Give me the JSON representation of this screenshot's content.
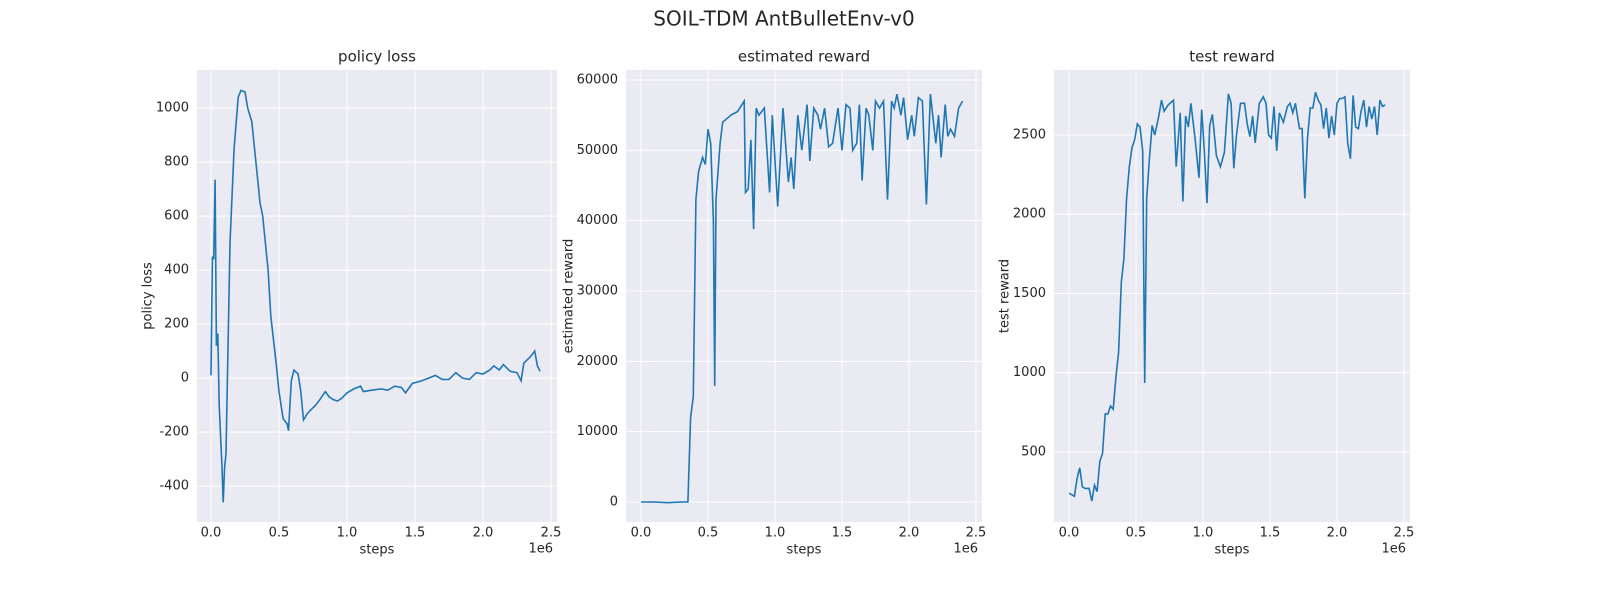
{
  "title": "SOIL-TDM AntBulletEnv-v0",
  "chart_data": [
    {
      "type": "line",
      "title": "policy loss",
      "xlabel": "steps",
      "ylabel": "policy loss",
      "x_offset_label": "1e6",
      "color": "#1f77b4",
      "grid": true,
      "xlim": [
        -103000,
        2544000
      ],
      "ylim": [
        -533,
        1141
      ],
      "xticks": [
        {
          "value": 0,
          "label": "0.0"
        },
        {
          "value": 500000,
          "label": "0.5"
        },
        {
          "value": 1000000,
          "label": "1.0"
        },
        {
          "value": 1500000,
          "label": "1.5"
        },
        {
          "value": 2000000,
          "label": "2.0"
        },
        {
          "value": 2500000,
          "label": "2.5"
        }
      ],
      "yticks": [
        -400,
        -200,
        0,
        200,
        400,
        600,
        800,
        1000
      ],
      "x": [
        0,
        10000,
        20000,
        30000,
        40000,
        50000,
        60000,
        80000,
        90000,
        100000,
        110000,
        140000,
        170000,
        200000,
        220000,
        250000,
        270000,
        300000,
        330000,
        360000,
        380000,
        420000,
        440000,
        480000,
        500000,
        530000,
        560000,
        570000,
        590000,
        610000,
        640000,
        660000,
        680000,
        710000,
        740000,
        770000,
        800000,
        840000,
        870000,
        900000,
        930000,
        960000,
        1000000,
        1050000,
        1100000,
        1120000,
        1180000,
        1250000,
        1300000,
        1350000,
        1400000,
        1430000,
        1480000,
        1550000,
        1600000,
        1650000,
        1700000,
        1750000,
        1800000,
        1850000,
        1900000,
        1950000,
        2000000,
        2050000,
        2080000,
        2120000,
        2150000,
        2200000,
        2250000,
        2280000,
        2300000,
        2350000,
        2380000,
        2400000,
        2420000
      ],
      "values": [
        10,
        450,
        440,
        735,
        120,
        165,
        -100,
        -320,
        -460,
        -330,
        -280,
        500,
        850,
        1040,
        1065,
        1060,
        1000,
        950,
        800,
        650,
        600,
        400,
        230,
        50,
        -50,
        -150,
        -170,
        -195,
        -10,
        30,
        15,
        -50,
        -155,
        -130,
        -115,
        -100,
        -80,
        -50,
        -70,
        -80,
        -85,
        -75,
        -55,
        -40,
        -30,
        -50,
        -45,
        -40,
        -45,
        -30,
        -35,
        -55,
        -20,
        -10,
        0,
        10,
        -5,
        -5,
        20,
        0,
        -5,
        20,
        15,
        30,
        45,
        30,
        50,
        25,
        20,
        -10,
        55,
        80,
        100,
        45,
        25
      ]
    },
    {
      "type": "line",
      "title": "estimated reward",
      "xlabel": "steps",
      "ylabel": "estimated reward",
      "x_offset_label": "1e6",
      "color": "#1f77b4",
      "grid": true,
      "xlim": [
        -112000,
        2545000
      ],
      "ylim": [
        -2844,
        61420
      ],
      "xticks": [
        {
          "value": 0,
          "label": "0.0"
        },
        {
          "value": 500000,
          "label": "0.5"
        },
        {
          "value": 1000000,
          "label": "1.0"
        },
        {
          "value": 1500000,
          "label": "1.5"
        },
        {
          "value": 2000000,
          "label": "2.0"
        },
        {
          "value": 2500000,
          "label": "2.5"
        }
      ],
      "yticks": [
        0,
        10000,
        20000,
        30000,
        40000,
        50000,
        60000
      ],
      "x": [
        0,
        100000,
        200000,
        300000,
        350000,
        370000,
        390000,
        410000,
        430000,
        460000,
        480000,
        500000,
        520000,
        540000,
        550000,
        560000,
        590000,
        610000,
        640000,
        670000,
        720000,
        770000,
        780000,
        800000,
        820000,
        840000,
        860000,
        880000,
        920000,
        960000,
        980000,
        1020000,
        1060000,
        1100000,
        1120000,
        1140000,
        1170000,
        1200000,
        1240000,
        1260000,
        1290000,
        1320000,
        1340000,
        1370000,
        1400000,
        1430000,
        1470000,
        1500000,
        1530000,
        1560000,
        1580000,
        1610000,
        1630000,
        1650000,
        1680000,
        1700000,
        1730000,
        1750000,
        1780000,
        1810000,
        1840000,
        1870000,
        1890000,
        1910000,
        1940000,
        1960000,
        1990000,
        2020000,
        2040000,
        2070000,
        2100000,
        2130000,
        2160000,
        2200000,
        2220000,
        2240000,
        2270000,
        2290000,
        2310000,
        2340000,
        2370000,
        2400000
      ],
      "values": [
        0,
        0,
        -100,
        0,
        0,
        12000,
        15000,
        43000,
        47000,
        49000,
        48000,
        53000,
        51000,
        40000,
        16500,
        43000,
        51000,
        54000,
        54500,
        55000,
        55500,
        57000,
        44000,
        44500,
        51500,
        38800,
        56000,
        55000,
        56000,
        44000,
        55000,
        42000,
        56000,
        45500,
        49000,
        44500,
        55000,
        50000,
        56500,
        48500,
        56000,
        55000,
        53000,
        56000,
        50500,
        51000,
        56000,
        50000,
        56500,
        56000,
        50000,
        51000,
        56500,
        45700,
        56000,
        55000,
        50000,
        57000,
        56000,
        57000,
        43000,
        57000,
        56000,
        58000,
        55000,
        57500,
        51500,
        55000,
        52000,
        57500,
        57000,
        42300,
        58000,
        51000,
        55000,
        49000,
        56500,
        52000,
        53000,
        52000,
        56000,
        57000
      ]
    },
    {
      "type": "line",
      "title": "test reward",
      "xlabel": "steps",
      "ylabel": "test reward",
      "x_offset_label": "1e6",
      "color": "#1f77b4",
      "grid": true,
      "xlim": [
        -112000,
        2545000
      ],
      "ylim": [
        58,
        2910
      ],
      "xticks": [
        {
          "value": 0,
          "label": "0.0"
        },
        {
          "value": 500000,
          "label": "0.5"
        },
        {
          "value": 1000000,
          "label": "1.0"
        },
        {
          "value": 1500000,
          "label": "1.5"
        },
        {
          "value": 2000000,
          "label": "2.0"
        },
        {
          "value": 2500000,
          "label": "2.5"
        }
      ],
      "yticks": [
        500,
        1000,
        1500,
        2000,
        2500
      ],
      "x": [
        0,
        20000,
        40000,
        60000,
        80000,
        100000,
        120000,
        150000,
        170000,
        190000,
        210000,
        230000,
        250000,
        270000,
        290000,
        310000,
        330000,
        350000,
        370000,
        390000,
        410000,
        430000,
        450000,
        470000,
        490000,
        510000,
        530000,
        550000,
        565000,
        580000,
        600000,
        620000,
        640000,
        670000,
        690000,
        710000,
        740000,
        780000,
        800000,
        830000,
        850000,
        870000,
        890000,
        910000,
        940000,
        970000,
        990000,
        1010000,
        1030000,
        1050000,
        1070000,
        1100000,
        1130000,
        1160000,
        1190000,
        1210000,
        1230000,
        1250000,
        1280000,
        1310000,
        1330000,
        1350000,
        1370000,
        1390000,
        1420000,
        1450000,
        1470000,
        1490000,
        1510000,
        1530000,
        1550000,
        1570000,
        1600000,
        1630000,
        1650000,
        1670000,
        1690000,
        1720000,
        1740000,
        1760000,
        1780000,
        1800000,
        1820000,
        1840000,
        1860000,
        1880000,
        1900000,
        1920000,
        1940000,
        1960000,
        1980000,
        2000000,
        2020000,
        2040000,
        2060000,
        2080000,
        2100000,
        2120000,
        2140000,
        2160000,
        2180000,
        2200000,
        2220000,
        2240000,
        2260000,
        2280000,
        2300000,
        2320000,
        2340000,
        2360000
      ],
      "values": [
        240,
        230,
        220,
        330,
        400,
        280,
        270,
        270,
        190,
        290,
        250,
        440,
        490,
        740,
        740,
        790,
        770,
        970,
        1130,
        1570,
        1720,
        2100,
        2300,
        2420,
        2470,
        2570,
        2550,
        2400,
        935,
        2100,
        2350,
        2560,
        2500,
        2620,
        2720,
        2650,
        2690,
        2720,
        2300,
        2640,
        2080,
        2620,
        2550,
        2700,
        2480,
        2230,
        2660,
        2400,
        2070,
        2560,
        2630,
        2370,
        2300,
        2390,
        2760,
        2700,
        2290,
        2500,
        2700,
        2700,
        2570,
        2490,
        2620,
        2450,
        2700,
        2740,
        2700,
        2500,
        2480,
        2680,
        2400,
        2640,
        2580,
        2680,
        2700,
        2640,
        2700,
        2540,
        2540,
        2100,
        2480,
        2670,
        2670,
        2770,
        2720,
        2690,
        2540,
        2670,
        2480,
        2620,
        2500,
        2700,
        2730,
        2730,
        2740,
        2450,
        2350,
        2750,
        2550,
        2540,
        2650,
        2720,
        2550,
        2680,
        2600,
        2680,
        2500,
        2720,
        2680,
        2690
      ]
    }
  ]
}
